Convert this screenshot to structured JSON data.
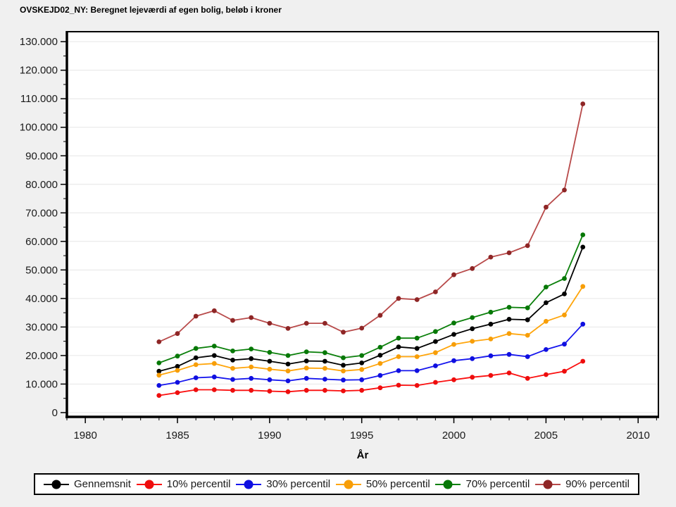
{
  "window": {
    "title": "OVSKEJD02_NY: Beregnet lejeværdi af egen bolig, beløb i kroner"
  },
  "chart_data": {
    "type": "line",
    "title": "OVSKEJD02_NY: Beregnet lejeværdi af egen bolig, beløb i kroner",
    "xlabel": "År",
    "ylabel": "",
    "grid": "horizontal",
    "legend_position": "bottom",
    "x": [
      1984,
      1985,
      1986,
      1987,
      1988,
      1989,
      1990,
      1991,
      1992,
      1993,
      1994,
      1995,
      1996,
      1997,
      1998,
      1999,
      2000,
      2001,
      2002,
      2003,
      2004,
      2005,
      2006,
      2007
    ],
    "series": [
      {
        "name": "Gennemsnit",
        "line": "#000000",
        "marker": "#000000",
        "values": [
          14500,
          16200,
          19200,
          20000,
          18400,
          18900,
          18000,
          17000,
          18100,
          18000,
          16600,
          17400,
          20100,
          23000,
          22500,
          24900,
          27400,
          29400,
          31000,
          32700,
          32500,
          38500,
          41600,
          58000
        ]
      },
      {
        "name": "10% percentil",
        "line": "#fb0f0f",
        "marker": "#ee0d0d",
        "values": [
          6000,
          7000,
          8000,
          8000,
          7800,
          7800,
          7500,
          7300,
          7800,
          7800,
          7600,
          7800,
          8700,
          9600,
          9500,
          10600,
          11500,
          12400,
          13000,
          13900,
          12000,
          13300,
          14500,
          18000
        ]
      },
      {
        "name": "30% percentil",
        "line": "#1515ee",
        "marker": "#0f0fe0",
        "values": [
          9500,
          10600,
          12200,
          12500,
          11600,
          12000,
          11500,
          11100,
          12000,
          11700,
          11400,
          11500,
          13000,
          14700,
          14700,
          16400,
          18200,
          18900,
          19900,
          20400,
          19600,
          22100,
          24000,
          31000
        ]
      },
      {
        "name": "50% percentil",
        "line": "#ffa50a",
        "marker": "#f79e08",
        "values": [
          13100,
          14800,
          16800,
          17200,
          15500,
          16000,
          15200,
          14600,
          15600,
          15500,
          14600,
          15100,
          17200,
          19600,
          19600,
          21000,
          23900,
          25000,
          25800,
          27700,
          27100,
          32000,
          34200,
          44200
        ]
      },
      {
        "name": "70% percentil",
        "line": "#0b800b",
        "marker": "#067806",
        "values": [
          17400,
          19800,
          22500,
          23300,
          21600,
          22300,
          21100,
          20000,
          21300,
          21000,
          19200,
          20000,
          22900,
          26100,
          26100,
          28400,
          31400,
          33300,
          35200,
          36900,
          36700,
          44000,
          47000,
          62300
        ]
      },
      {
        "name": "90% percentil",
        "line": "#b84a4a",
        "marker": "#8e2626",
        "values": [
          24800,
          27700,
          33800,
          35700,
          32300,
          33300,
          31300,
          29500,
          31300,
          31300,
          28200,
          29600,
          34100,
          40000,
          39600,
          42300,
          48300,
          50500,
          54500,
          56000,
          58500,
          72000,
          78000,
          108200
        ]
      }
    ],
    "axes": {
      "xlim": [
        1979,
        2011.1
      ],
      "ylim": [
        -1500,
        133500
      ],
      "xticks": [
        1980,
        1985,
        1990,
        1995,
        2000,
        2005,
        2010
      ],
      "x_minor_from": 1979,
      "x_minor_to": 2011,
      "x_minor_step": 1,
      "yticks": [
        0,
        10000,
        20000,
        30000,
        40000,
        50000,
        60000,
        70000,
        80000,
        90000,
        100000,
        110000,
        120000,
        130000
      ],
      "ytick_labels": [
        "0",
        "10.000",
        "20.000",
        "30.000",
        "40.000",
        "50.000",
        "60.000",
        "70.000",
        "80.000",
        "90.000",
        "100.000",
        "110.000",
        "120.000",
        "130.000"
      ],
      "y_minor_step": 5000
    }
  }
}
